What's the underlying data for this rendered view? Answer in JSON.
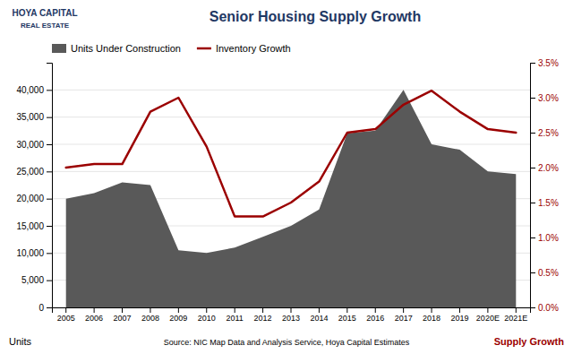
{
  "chart_data": {
    "type": "area",
    "title": "Senior Housing Supply Growth",
    "ylabel": "Units",
    "y2label": "Supply Growth",
    "annotations": [
      "Source: NIC Map Data and Analysis Service, Hoya Capital Estimates",
      "HOYA CAPITAL",
      "REAL ESTATE"
    ],
    "categories": [
      "2005",
      "2006",
      "2007",
      "2008",
      "2009",
      "2010",
      "2011",
      "2012",
      "2013",
      "2014",
      "2015",
      "2016",
      "2017",
      "2018",
      "2019",
      "2020E",
      "2021E"
    ],
    "series": [
      {
        "name": "Units Under Construction",
        "type": "area",
        "color": "#595959",
        "values": [
          20000,
          21000,
          23000,
          22500,
          10500,
          10000,
          11000,
          13000,
          15000,
          18000,
          32000,
          32500,
          40000,
          30000,
          29000,
          25000,
          24500
        ]
      },
      {
        "name": "Inventory Growth",
        "type": "line",
        "color": "#9b0000",
        "axis": "y2",
        "values": [
          2.0,
          2.05,
          2.05,
          2.8,
          3.0,
          2.3,
          1.3,
          1.3,
          1.5,
          1.8,
          2.5,
          2.55,
          2.9,
          3.1,
          2.8,
          2.55,
          2.5
        ]
      }
    ],
    "ylim": [
      0,
      45000
    ],
    "yticks": [
      0,
      {
        "value": 5000,
        "label": "5,000"
      },
      {
        "value": 10000,
        "label": "10,000"
      },
      {
        "value": 15000,
        "label": "15,000"
      },
      {
        "value": 20000,
        "label": "20,000"
      },
      {
        "value": 25000,
        "label": "25,000"
      },
      {
        "value": 30000,
        "label": "30,000"
      },
      {
        "value": 35000,
        "label": "35,000"
      },
      {
        "value": 40000,
        "label": "40,000"
      }
    ],
    "y2lim": [
      0.0,
      3.5
    ],
    "y2ticks": [
      {
        "value": 0.0,
        "label": "0.0%"
      },
      {
        "value": 0.5,
        "label": "0.5%"
      },
      {
        "value": 1.0,
        "label": "1.0%"
      },
      {
        "value": 1.5,
        "label": "1.5%"
      },
      {
        "value": 2.0,
        "label": "2.0%"
      },
      {
        "value": 2.5,
        "label": "2.5%"
      },
      {
        "value": 3.0,
        "label": "3.0%"
      },
      {
        "value": 3.5,
        "label": "3.5%"
      }
    ],
    "grid": true,
    "legend": "top-left"
  }
}
